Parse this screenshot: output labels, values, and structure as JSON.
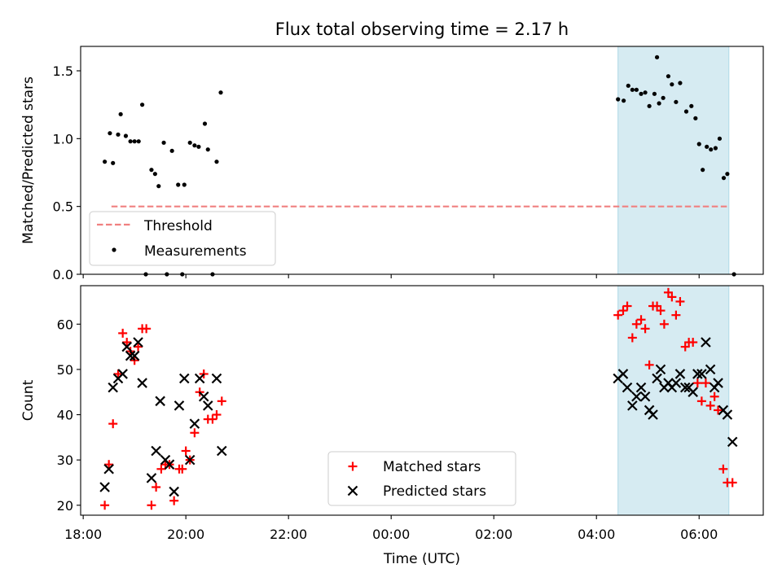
{
  "title": "Flux total observing time = 2.17 h",
  "colors": {
    "threshold": "#f08080",
    "measurement": "#000000",
    "matched": "#ff0000",
    "predicted": "#000000",
    "highlight": "#add8e6"
  },
  "chart_data": [
    {
      "type": "scatter",
      "ylabel": "Matched/Predicted stars",
      "ylim": [
        0,
        1.68
      ],
      "yticks": [
        0.0,
        0.5,
        1.0,
        1.5
      ],
      "ytick_labels": [
        "0.0",
        "0.5",
        "1.0",
        "1.5"
      ],
      "x_unit": "hours since 18:00 UTC",
      "highlight_span": {
        "x_start": 10.42,
        "x_end": 12.58
      },
      "threshold": {
        "name": "Threshold",
        "value": 0.5,
        "x_start": 0.55,
        "x_end": 12.58
      },
      "legend": {
        "position": "lower-left",
        "entries": [
          "Threshold",
          "Measurements"
        ]
      },
      "series": [
        {
          "name": "Measurements",
          "points": [
            [
              0.42,
              0.83
            ],
            [
              0.52,
              1.04
            ],
            [
              0.58,
              0.82
            ],
            [
              0.68,
              1.03
            ],
            [
              0.73,
              1.18
            ],
            [
              0.83,
              1.02
            ],
            [
              0.92,
              0.98
            ],
            [
              1.0,
              0.98
            ],
            [
              1.08,
              0.98
            ],
            [
              1.15,
              1.25
            ],
            [
              1.22,
              0.0
            ],
            [
              1.33,
              0.77
            ],
            [
              1.4,
              0.74
            ],
            [
              1.47,
              0.65
            ],
            [
              1.57,
              0.97
            ],
            [
              1.63,
              0.0
            ],
            [
              1.73,
              0.91
            ],
            [
              1.85,
              0.66
            ],
            [
              1.93,
              0.0
            ],
            [
              1.97,
              0.66
            ],
            [
              2.08,
              0.97
            ],
            [
              2.17,
              0.95
            ],
            [
              2.25,
              0.94
            ],
            [
              2.37,
              1.11
            ],
            [
              2.43,
              0.92
            ],
            [
              2.52,
              0.0
            ],
            [
              2.6,
              0.83
            ],
            [
              2.68,
              1.34
            ],
            [
              10.42,
              1.29
            ],
            [
              10.53,
              1.28
            ],
            [
              10.62,
              1.39
            ],
            [
              10.7,
              1.36
            ],
            [
              10.78,
              1.36
            ],
            [
              10.87,
              1.33
            ],
            [
              10.95,
              1.34
            ],
            [
              11.03,
              1.24
            ],
            [
              11.13,
              1.33
            ],
            [
              11.22,
              1.26
            ],
            [
              11.3,
              1.3
            ],
            [
              11.4,
              1.46
            ],
            [
              11.47,
              1.4
            ],
            [
              11.55,
              1.27
            ],
            [
              11.63,
              1.41
            ],
            [
              11.75,
              1.2
            ],
            [
              11.85,
              1.24
            ],
            [
              11.93,
              1.15
            ],
            [
              12.0,
              0.96
            ],
            [
              12.07,
              0.77
            ],
            [
              12.15,
              0.94
            ],
            [
              12.23,
              0.92
            ],
            [
              12.32,
              0.93
            ],
            [
              12.4,
              1.0
            ],
            [
              12.48,
              0.71
            ],
            [
              12.55,
              0.74
            ],
            [
              12.68,
              0.0
            ],
            [
              11.18,
              1.6
            ]
          ]
        }
      ]
    },
    {
      "type": "scatter",
      "xlabel": "Time (UTC)",
      "ylabel": "Count",
      "ylim": [
        17.8,
        68.5
      ],
      "yticks": [
        20,
        30,
        40,
        50,
        60
      ],
      "ytick_labels": [
        "20",
        "30",
        "40",
        "50",
        "60"
      ],
      "xlim": [
        -0.05,
        13.25
      ],
      "xticks": [
        0,
        2,
        4,
        6,
        8,
        10,
        12
      ],
      "xtick_labels": [
        "18:00",
        "20:00",
        "22:00",
        "00:00",
        "02:00",
        "04:00",
        "06:00"
      ],
      "x_unit": "hours since 18:00 UTC",
      "highlight_span": {
        "x_start": 10.42,
        "x_end": 12.58
      },
      "legend": {
        "position": "lower-center",
        "entries": [
          "Matched stars",
          "Predicted stars"
        ]
      },
      "series": [
        {
          "name": "Matched stars",
          "marker": "plus",
          "points": [
            [
              0.42,
              20
            ],
            [
              0.5,
              29
            ],
            [
              0.58,
              38
            ],
            [
              0.68,
              49
            ],
            [
              0.77,
              58
            ],
            [
              0.85,
              56
            ],
            [
              0.92,
              54
            ],
            [
              1.0,
              52
            ],
            [
              1.07,
              55
            ],
            [
              1.15,
              59
            ],
            [
              1.23,
              59
            ],
            [
              1.33,
              20
            ],
            [
              1.42,
              24
            ],
            [
              1.52,
              28
            ],
            [
              1.6,
              29
            ],
            [
              1.68,
              29
            ],
            [
              1.77,
              21
            ],
            [
              1.87,
              28
            ],
            [
              1.93,
              28
            ],
            [
              2.0,
              32
            ],
            [
              2.08,
              30
            ],
            [
              2.17,
              36
            ],
            [
              2.27,
              45
            ],
            [
              2.35,
              49
            ],
            [
              2.43,
              39
            ],
            [
              2.52,
              39
            ],
            [
              2.6,
              40
            ],
            [
              2.7,
              43
            ],
            [
              10.42,
              62
            ],
            [
              10.52,
              63
            ],
            [
              10.6,
              64
            ],
            [
              10.7,
              57
            ],
            [
              10.78,
              60
            ],
            [
              10.87,
              61
            ],
            [
              10.95,
              59
            ],
            [
              11.03,
              51
            ],
            [
              11.1,
              64
            ],
            [
              11.18,
              64
            ],
            [
              11.25,
              63
            ],
            [
              11.32,
              60
            ],
            [
              11.4,
              67
            ],
            [
              11.47,
              66
            ],
            [
              11.55,
              62
            ],
            [
              11.63,
              65
            ],
            [
              11.73,
              55
            ],
            [
              11.8,
              56
            ],
            [
              11.88,
              56
            ],
            [
              11.97,
              47
            ],
            [
              12.05,
              43
            ],
            [
              12.13,
              47
            ],
            [
              12.22,
              42
            ],
            [
              12.3,
              44
            ],
            [
              12.37,
              41
            ],
            [
              12.47,
              28
            ],
            [
              12.55,
              25
            ],
            [
              12.65,
              25
            ]
          ]
        },
        {
          "name": "Predicted stars",
          "marker": "x",
          "points": [
            [
              0.42,
              24
            ],
            [
              0.5,
              28
            ],
            [
              0.58,
              46
            ],
            [
              0.68,
              48
            ],
            [
              0.77,
              49
            ],
            [
              0.85,
              55
            ],
            [
              0.92,
              53
            ],
            [
              1.0,
              53
            ],
            [
              1.07,
              56
            ],
            [
              1.15,
              47
            ],
            [
              1.33,
              26
            ],
            [
              1.42,
              32
            ],
            [
              1.5,
              43
            ],
            [
              1.6,
              30
            ],
            [
              1.68,
              29
            ],
            [
              1.77,
              23
            ],
            [
              1.87,
              42
            ],
            [
              1.97,
              48
            ],
            [
              2.08,
              30
            ],
            [
              2.17,
              38
            ],
            [
              2.27,
              48
            ],
            [
              2.35,
              44
            ],
            [
              2.43,
              42
            ],
            [
              2.6,
              48
            ],
            [
              2.7,
              32
            ],
            [
              10.42,
              48
            ],
            [
              10.52,
              49
            ],
            [
              10.6,
              46
            ],
            [
              10.7,
              42
            ],
            [
              10.78,
              44
            ],
            [
              10.87,
              46
            ],
            [
              10.95,
              44
            ],
            [
              11.03,
              41
            ],
            [
              11.1,
              40
            ],
            [
              11.18,
              48
            ],
            [
              11.25,
              50
            ],
            [
              11.32,
              46
            ],
            [
              11.4,
              47
            ],
            [
              11.47,
              46
            ],
            [
              11.55,
              47
            ],
            [
              11.63,
              49
            ],
            [
              11.73,
              46
            ],
            [
              11.8,
              46
            ],
            [
              11.88,
              45
            ],
            [
              11.97,
              49
            ],
            [
              12.05,
              49
            ],
            [
              12.13,
              56
            ],
            [
              12.22,
              50
            ],
            [
              12.3,
              46
            ],
            [
              12.37,
              47
            ],
            [
              12.47,
              41
            ],
            [
              12.55,
              40
            ],
            [
              12.65,
              34
            ]
          ]
        }
      ]
    }
  ]
}
